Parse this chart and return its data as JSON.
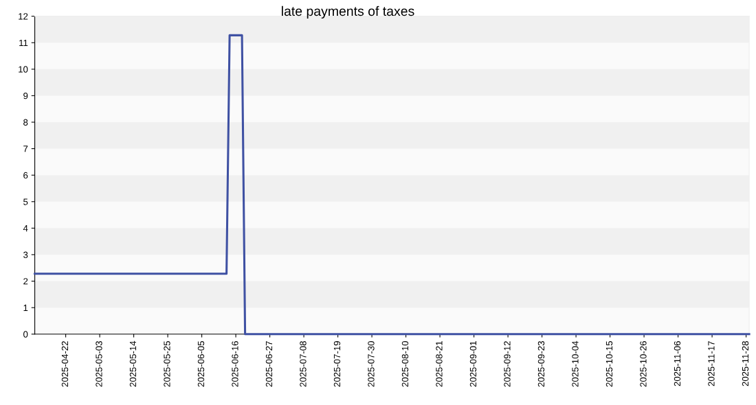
{
  "chart_data": {
    "type": "line",
    "title": "late payments of taxes",
    "x": [
      "2025-04-12",
      "2025-06-13",
      "2025-06-14",
      "2025-06-18",
      "2025-06-19",
      "2025-11-29"
    ],
    "series": [
      {
        "color": "#3f51a3",
        "values": [
          2.28,
          2.28,
          11.28,
          11.28,
          0,
          0
        ]
      }
    ],
    "xlim": [
      "2025-04-12",
      "2025-11-29"
    ],
    "xticks": [
      "2025-04-22",
      "2025-05-03",
      "2025-05-14",
      "2025-05-25",
      "2025-06-05",
      "2025-06-16",
      "2025-06-27",
      "2025-07-08",
      "2025-07-19",
      "2025-07-30",
      "2025-08-10",
      "2025-08-21",
      "2025-09-01",
      "2025-09-12",
      "2025-09-23",
      "2025-10-04",
      "2025-10-15",
      "2025-10-26",
      "2025-11-06",
      "2025-11-17",
      "2025-11-28"
    ],
    "ylim": [
      0,
      12
    ],
    "yticks": [
      0,
      1,
      2,
      3,
      4,
      5,
      6,
      7,
      8,
      9,
      10,
      11,
      12
    ],
    "marker": "none",
    "line_style": "solid"
  }
}
